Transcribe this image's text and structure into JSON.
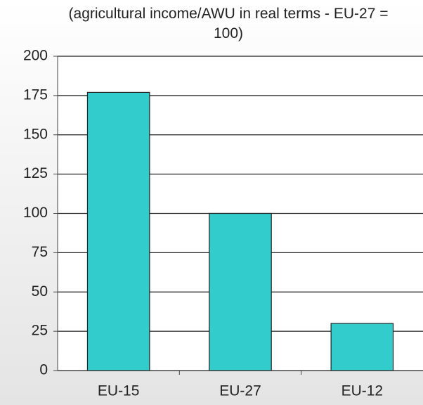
{
  "chart_data": {
    "type": "bar",
    "title": "(agricultural income/AWU in real terms - EU-27 = 100)",
    "categories": [
      "EU-15",
      "EU-27",
      "EU-12"
    ],
    "values": [
      177,
      100,
      30
    ],
    "color": "#33cccc",
    "ylim": [
      0,
      200
    ],
    "yticks": [
      0,
      25,
      50,
      75,
      100,
      125,
      150,
      175,
      200
    ],
    "grid": true
  }
}
